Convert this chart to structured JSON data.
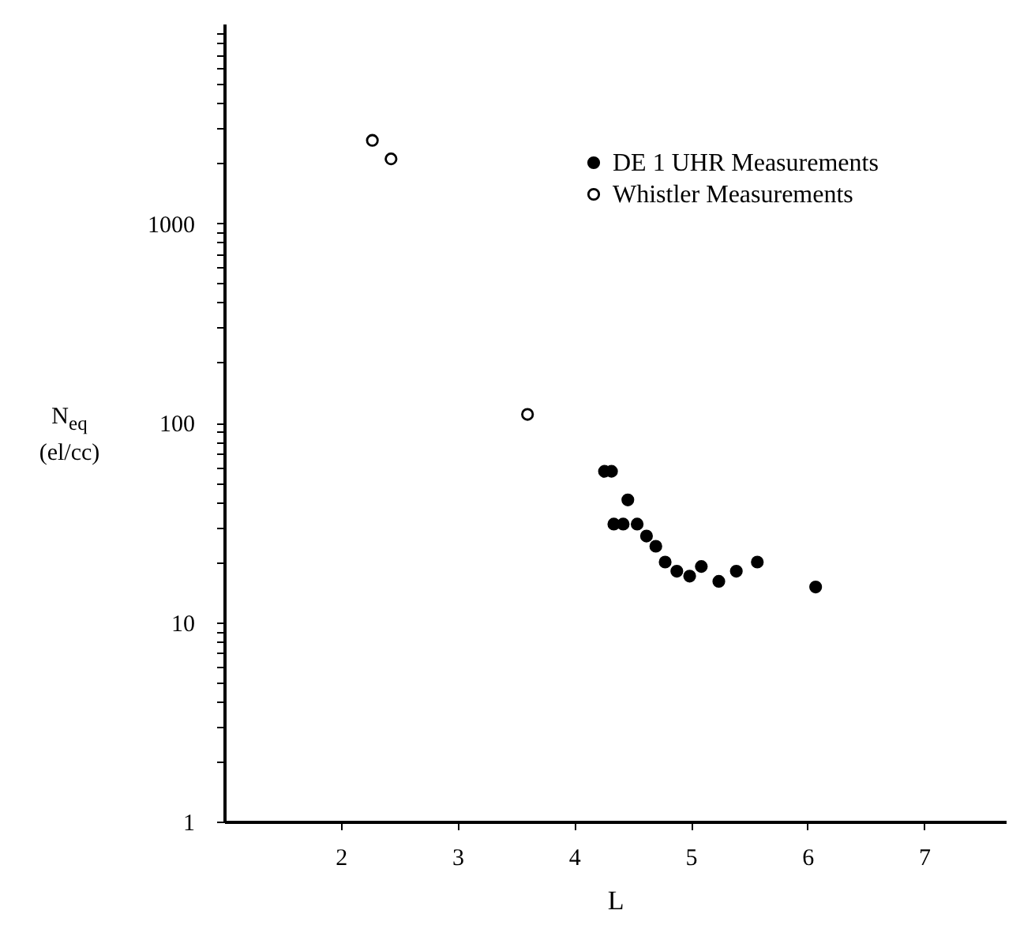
{
  "chart_data": {
    "type": "scatter",
    "xlabel": "L",
    "ylabel": "N$_{eq}$ (el/cc)",
    "xlim": [
      1,
      7.7
    ],
    "xticks": [
      2,
      3,
      4,
      5,
      6,
      7
    ],
    "ylim": [
      1,
      10000
    ],
    "yticks": [
      1,
      {
        "value": 2,
        "label": null
      },
      {
        "value": 3,
        "label": null
      },
      {
        "value": 4,
        "label": null
      },
      {
        "value": 5,
        "label": null
      },
      {
        "value": 6,
        "label": null
      },
      {
        "value": 7,
        "label": null
      },
      {
        "value": 8,
        "label": null
      },
      {
        "value": 9,
        "label": null
      },
      10,
      {
        "value": 20,
        "label": null
      },
      {
        "value": 30,
        "label": null
      },
      {
        "value": 40,
        "label": null
      },
      {
        "value": 50,
        "label": null
      },
      {
        "value": 60,
        "label": null
      },
      {
        "value": 70,
        "label": null
      },
      {
        "value": 80,
        "label": null
      },
      {
        "value": 90,
        "label": null
      },
      100,
      {
        "value": 200,
        "label": null
      },
      {
        "value": 300,
        "label": null
      },
      {
        "value": 400,
        "label": null
      },
      {
        "value": 500,
        "label": null
      },
      {
        "value": 600,
        "label": null
      },
      {
        "value": 700,
        "label": null
      },
      {
        "value": 800,
        "label": null
      },
      {
        "value": 900,
        "label": null
      },
      1000,
      {
        "value": 2000,
        "label": null
      },
      {
        "value": 3000,
        "label": null
      },
      {
        "value": 4000,
        "label": null
      },
      {
        "value": 5000,
        "label": null
      },
      {
        "value": 6000,
        "label": null
      },
      {
        "value": 7000,
        "label": null
      },
      {
        "value": 8000,
        "label": null
      },
      {
        "value": 9000,
        "label": null
      }
    ],
    "log": "y",
    "legend": "top right",
    "marker": "circle",
    "series": [
      {
        "name": "DE 1 UHR Measurements",
        "color": "#000000",
        "x": [
          4.26,
          4.32,
          4.46,
          4.34,
          4.42,
          4.54,
          4.62,
          4.7,
          4.78,
          4.88,
          4.99,
          5.09,
          5.24,
          5.39,
          5.57,
          6.07
        ],
        "values": [
          57,
          57,
          41,
          31,
          31,
          31,
          27,
          24,
          20,
          18,
          17,
          19,
          16,
          18,
          20,
          15
        ]
      },
      {
        "name": "Whistler Measurements",
        "color": "#000000",
        "x": [
          2.27,
          2.43,
          3.6
        ],
        "values": [
          2600,
          2100,
          110
        ]
      }
    ]
  }
}
